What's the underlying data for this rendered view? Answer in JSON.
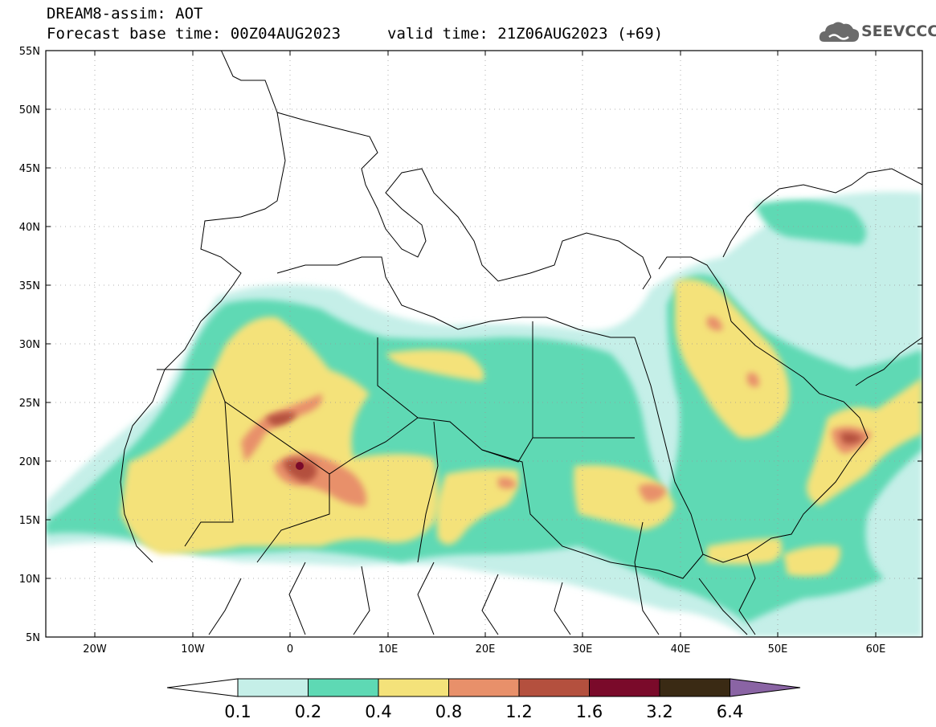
{
  "header": {
    "title": "DREAM8-assim: AOT",
    "base_time": "Forecast base time: 00Z04AUG2023",
    "valid_time": "valid time: 21Z06AUG2023 (+69)",
    "logo_text": "SEEVCCC"
  },
  "map": {
    "lat_labels": [
      "55N",
      "50N",
      "45N",
      "40N",
      "35N",
      "30N",
      "25N",
      "20N",
      "15N",
      "10N",
      "5N"
    ],
    "lon_labels": [
      "20W",
      "10W",
      "0",
      "10E",
      "20E",
      "30E",
      "40E",
      "50E",
      "60E"
    ]
  },
  "colorbar": {
    "labels": [
      "0.1",
      "0.2",
      "0.4",
      "0.8",
      "1.2",
      "1.6",
      "3.2",
      "6.4"
    ],
    "colors": [
      "#c5efe8",
      "#5ed9b4",
      "#f4e27a",
      "#e8906a",
      "#b4503e",
      "#7a0a2a",
      "#3a2a14",
      "#8a64a4"
    ]
  },
  "colors": {
    "aot_01": "#c5efe8",
    "aot_02": "#5ed9b4",
    "aot_04": "#f4e27a",
    "aot_08": "#e8906a",
    "aot_12": "#b4503e",
    "aot_16": "#7a0a2a",
    "aot_32": "#3a2a14",
    "aot_64": "#8a64a4"
  }
}
